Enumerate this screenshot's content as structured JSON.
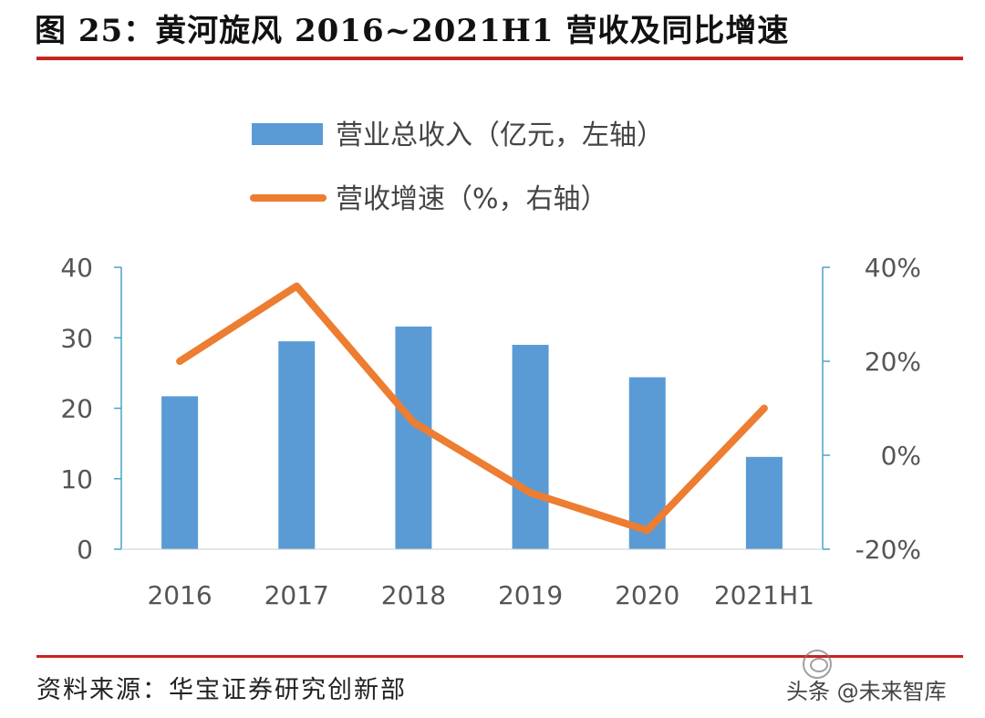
{
  "title": "图 25：黄河旋风 2016~2021H1 营收及同比增速",
  "source": "资料来源：华宝证券研究创新部",
  "watermark": "头条 @未来智库",
  "colors": {
    "bar": "#5b9bd5",
    "line": "#ed7d31",
    "axis": "#4aa3c9",
    "rule": "#c9241f",
    "tick_text": "#555555"
  },
  "chart_data": {
    "type": "bar",
    "categories": [
      "2016",
      "2017",
      "2018",
      "2019",
      "2020",
      "2021H1"
    ],
    "series": [
      {
        "name": "营业总收入（亿元，左轴）",
        "type": "bar",
        "axis": "left",
        "values": [
          21.7,
          29.5,
          31.6,
          29.0,
          24.4,
          13.1
        ]
      },
      {
        "name": "营收增速（%，右轴）",
        "type": "line",
        "axis": "right",
        "values": [
          20,
          36,
          7,
          -8,
          -16,
          10
        ]
      }
    ],
    "left_axis": {
      "range": [
        0,
        40
      ],
      "ticks": [
        0,
        10,
        20,
        30,
        40
      ],
      "tick_labels": [
        "0",
        "10",
        "20",
        "30",
        "40"
      ]
    },
    "right_axis": {
      "range": [
        -20,
        40
      ],
      "ticks": [
        -20,
        0,
        20,
        40
      ],
      "tick_labels": [
        "-20%",
        "0%",
        "20%",
        "40%"
      ]
    },
    "legend": {
      "placement": "top"
    },
    "grid": false
  }
}
